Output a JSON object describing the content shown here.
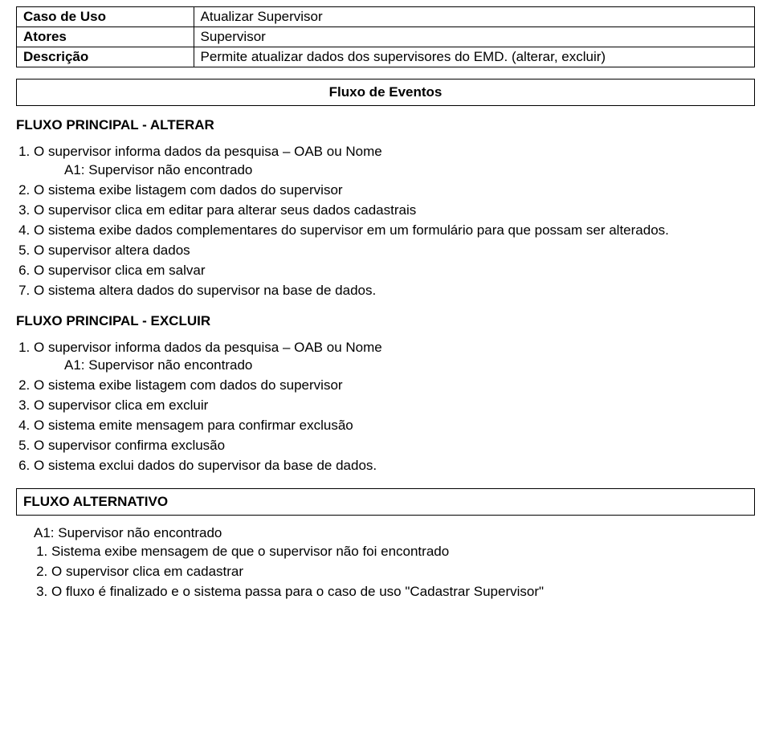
{
  "meta": {
    "row1_label": "Caso de Uso",
    "row1_value": "Atualizar Supervisor",
    "row2_label": "Atores",
    "row2_value": "Supervisor",
    "row3_label": "Descrição",
    "row3_value": "Permite atualizar dados dos supervisores do EMD. (alterar, excluir)"
  },
  "fluxo_eventos_title": "Fluxo de Eventos",
  "secao_alterar": "FLUXO PRINCIPAL - ALTERAR",
  "alterar": {
    "i1": "O supervisor informa dados da pesquisa – OAB ou Nome",
    "i1_sub": "A1: Supervisor não encontrado",
    "i2": "O sistema exibe listagem com dados do supervisor",
    "i3": "O supervisor clica em editar para alterar seus dados cadastrais",
    "i4": "O sistema exibe dados complementares do supervisor em um formulário para que possam ser alterados.",
    "i5": "O supervisor altera dados",
    "i6": "O supervisor clica em salvar",
    "i7": "O sistema altera dados do supervisor na base de dados."
  },
  "secao_excluir": "FLUXO PRINCIPAL - EXCLUIR",
  "excluir": {
    "i1": "O supervisor informa dados da pesquisa – OAB ou Nome",
    "i1_sub": "A1: Supervisor não encontrado",
    "i2": "O sistema exibe listagem com dados do supervisor",
    "i3": "O supervisor clica em excluir",
    "i4": "O sistema emite mensagem para confirmar exclusão",
    "i5": "O supervisor confirma exclusão",
    "i6": "O sistema exclui dados do supervisor da base de dados."
  },
  "secao_alternativo": "FLUXO ALTERNATIVO",
  "alternativo": {
    "heading": "A1: Supervisor não encontrado",
    "i1": "Sistema exibe mensagem de que o supervisor não foi encontrado",
    "i2": "O supervisor clica em cadastrar",
    "i3": "O fluxo é finalizado e o sistema passa para o caso de uso \"Cadastrar Supervisor\""
  }
}
